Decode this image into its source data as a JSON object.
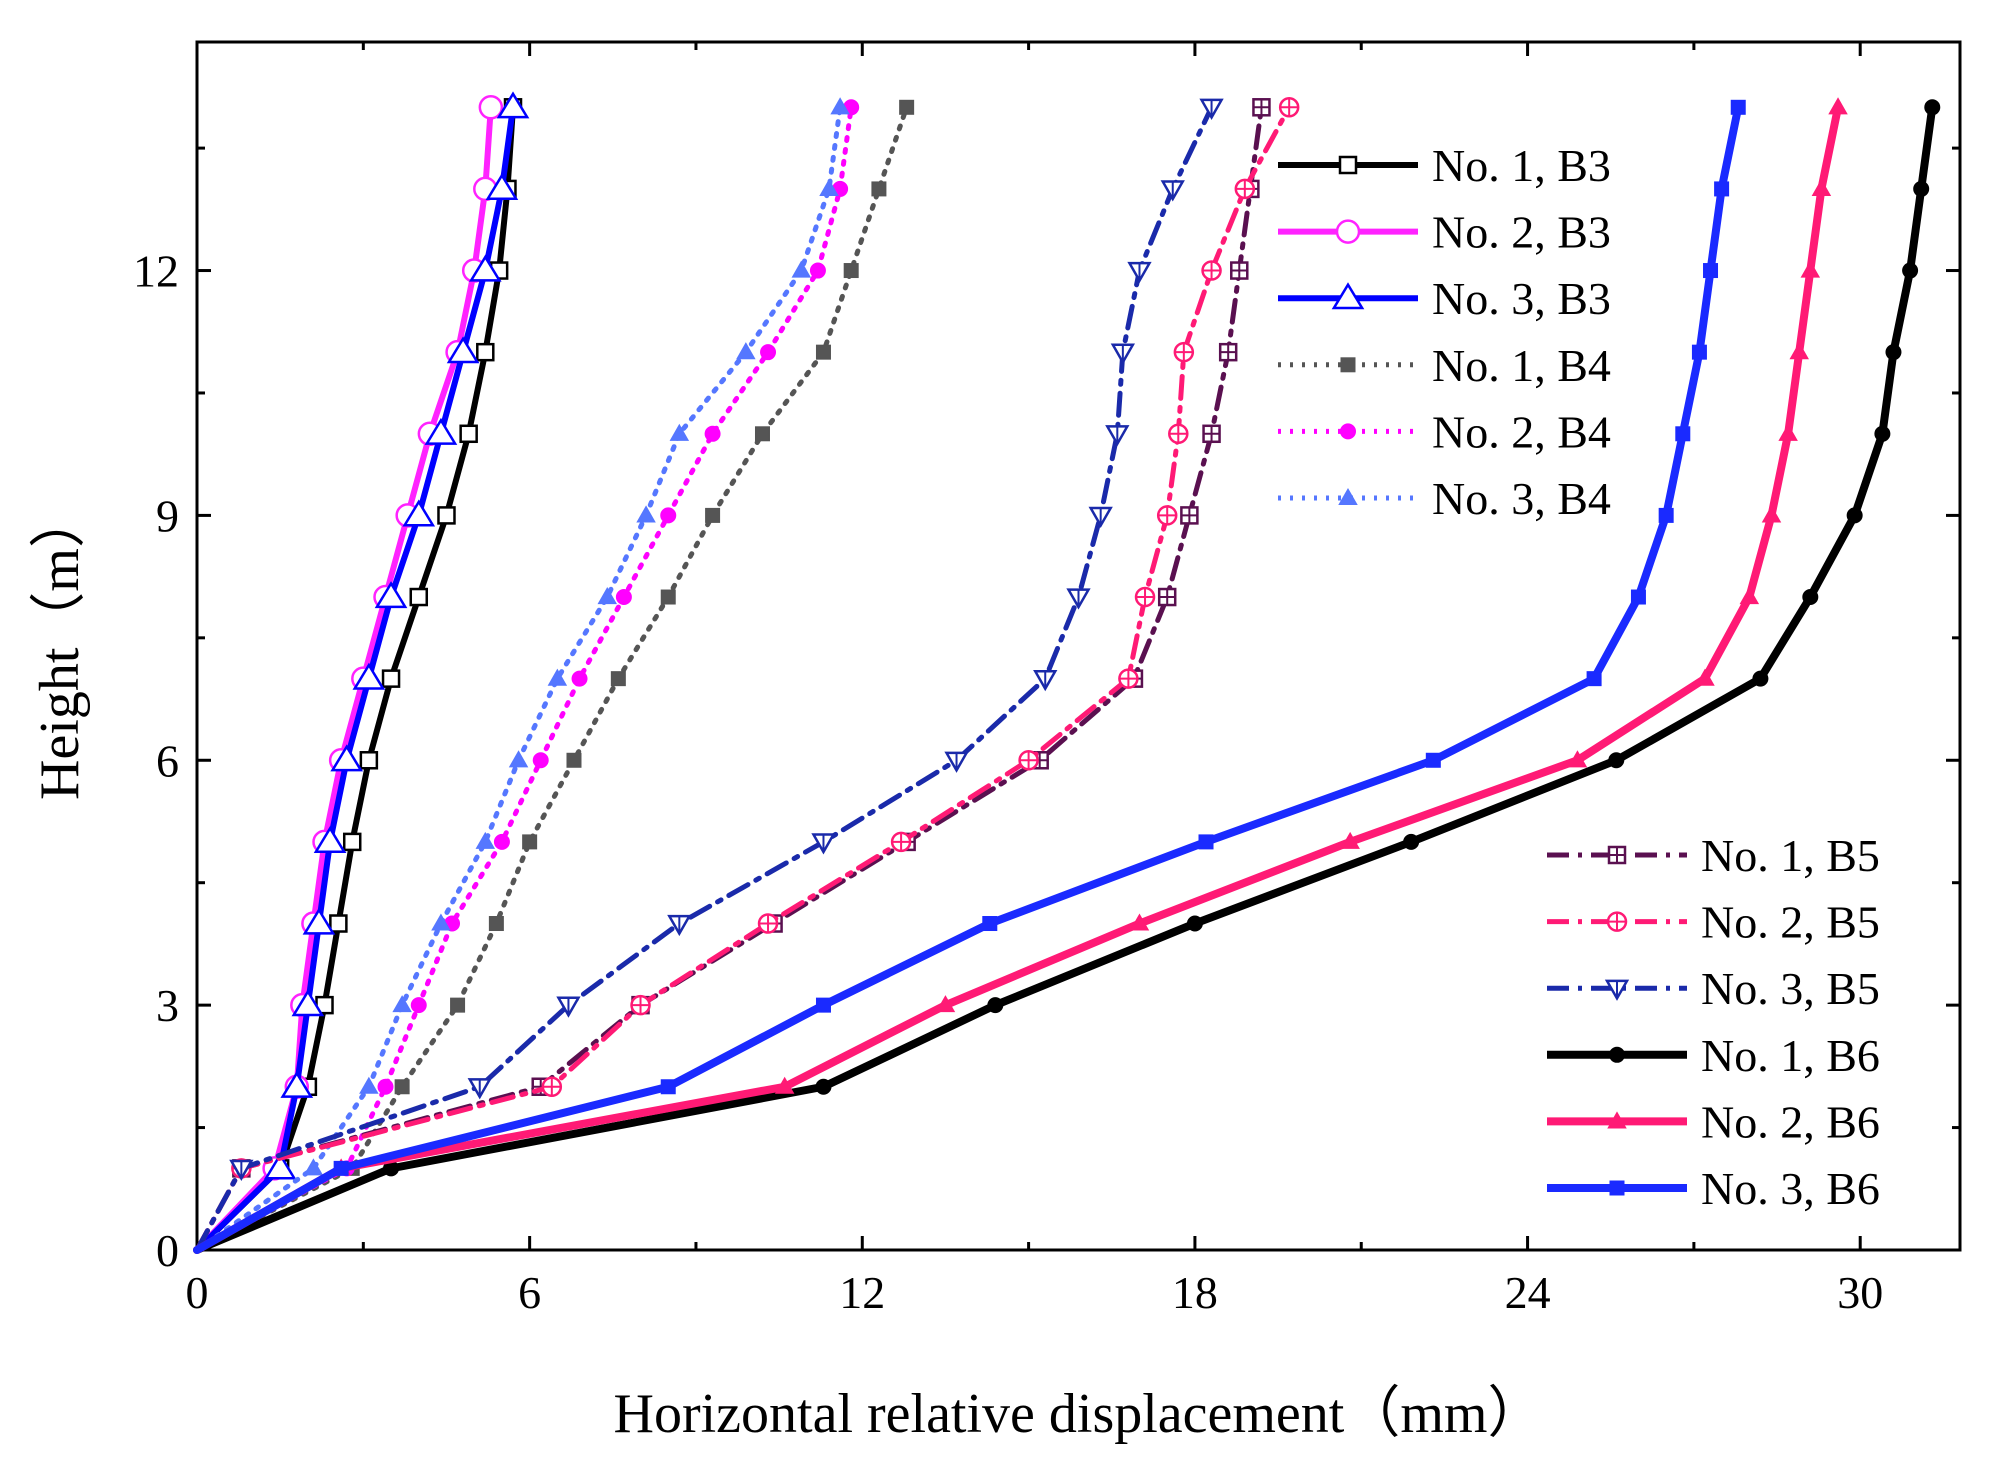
{
  "chart_data": {
    "type": "line",
    "title": "",
    "xlabel": "Horizontal relative displacement（mm）",
    "ylabel": "Height（m）",
    "xlim": [
      0,
      31.8
    ],
    "ylim": [
      0,
      14.8
    ],
    "xticks": [
      0,
      6,
      12,
      18,
      24,
      30
    ],
    "yticks": [
      0,
      3,
      6,
      9,
      12
    ],
    "grid": false,
    "legend_top": {
      "position": "top-right"
    },
    "legend_bottom": {
      "position": "bottom-right"
    },
    "series": [
      {
        "name": "No. 1, B3",
        "color": "#000000",
        "dash": "solid",
        "width": 6,
        "marker": "square-open",
        "x": [
          0,
          1.5,
          2.0,
          2.3,
          2.55,
          2.8,
          3.1,
          3.5,
          4.0,
          4.5,
          4.9,
          5.2,
          5.45,
          5.6,
          5.7
        ],
        "y": [
          0,
          1,
          2,
          3,
          4,
          5,
          6,
          7,
          8,
          9,
          10,
          11,
          12,
          13,
          14
        ]
      },
      {
        "name": "No. 2, B3",
        "color": "#FF22FF",
        "dash": "solid",
        "width": 6,
        "marker": "circle-open",
        "x": [
          0,
          1.4,
          1.8,
          1.9,
          2.1,
          2.3,
          2.6,
          3.0,
          3.4,
          3.8,
          4.2,
          4.7,
          5.0,
          5.2,
          5.3
        ],
        "y": [
          0,
          1,
          2,
          3,
          4,
          5,
          6,
          7,
          8,
          9,
          10,
          11,
          12,
          13,
          14
        ]
      },
      {
        "name": "No. 3, B3",
        "color": "#0000FF",
        "dash": "solid",
        "width": 6,
        "marker": "triangle-open",
        "x": [
          0,
          1.5,
          1.8,
          2.0,
          2.2,
          2.4,
          2.7,
          3.1,
          3.5,
          4.0,
          4.4,
          4.8,
          5.2,
          5.5,
          5.7
        ],
        "y": [
          0,
          1,
          2,
          3,
          4,
          5,
          6,
          7,
          8,
          9,
          10,
          11,
          12,
          13,
          14
        ]
      },
      {
        "name": "No. 1, B4",
        "color": "#555555",
        "dash": "dot",
        "width": 5,
        "marker": "square",
        "x": [
          0,
          2.8,
          3.7,
          4.7,
          5.4,
          6.0,
          6.8,
          7.6,
          8.5,
          9.3,
          10.2,
          11.3,
          11.8,
          12.3,
          12.8
        ],
        "y": [
          0,
          1,
          2,
          3,
          4,
          5,
          6,
          7,
          8,
          9,
          10,
          11,
          12,
          13,
          14
        ]
      },
      {
        "name": "No. 2, B4",
        "color": "#FF00FF",
        "dash": "dot",
        "width": 5,
        "marker": "circle",
        "x": [
          0,
          2.7,
          3.4,
          4.0,
          4.6,
          5.5,
          6.2,
          6.9,
          7.7,
          8.5,
          9.3,
          10.3,
          11.2,
          11.6,
          11.8
        ],
        "y": [
          0,
          1,
          2,
          3,
          4,
          5,
          6,
          7,
          8,
          9,
          10,
          11,
          12,
          13,
          14
        ]
      },
      {
        "name": "No. 3, B4",
        "color": "#5577FF",
        "dash": "dot",
        "width": 5,
        "marker": "triangle",
        "x": [
          0,
          2.1,
          3.1,
          3.7,
          4.4,
          5.2,
          5.8,
          6.5,
          7.4,
          8.1,
          8.7,
          9.9,
          10.9,
          11.4,
          11.6
        ],
        "y": [
          0,
          1,
          2,
          3,
          4,
          5,
          6,
          7,
          8,
          9,
          10,
          11,
          12,
          13,
          14
        ]
      },
      {
        "name": "No. 1, B5",
        "color": "#5A1050",
        "dash": "dashdot",
        "width": 5,
        "marker": "square-half",
        "x": [
          0,
          0.8,
          6.2,
          8.0,
          10.4,
          12.8,
          15.2,
          16.9,
          17.5,
          17.9,
          18.3,
          18.6,
          18.8,
          19.0,
          19.2
        ],
        "y": [
          0,
          1,
          2,
          3,
          4,
          5,
          6,
          7,
          8,
          9,
          10,
          11,
          12,
          13,
          14
        ]
      },
      {
        "name": "No. 2, B5",
        "color": "#FF1A75",
        "dash": "dashdot",
        "width": 5,
        "marker": "circle-half",
        "x": [
          0,
          0.8,
          6.4,
          8.0,
          10.3,
          12.7,
          15.0,
          16.8,
          17.1,
          17.5,
          17.7,
          17.8,
          18.3,
          18.9,
          19.7
        ],
        "y": [
          0,
          1,
          2,
          3,
          4,
          5,
          6,
          7,
          8,
          9,
          10,
          11,
          12,
          13,
          14
        ]
      },
      {
        "name": "No. 3, B5",
        "color": "#1A2AAA",
        "dash": "dashdot",
        "width": 5,
        "marker": "triangle-down",
        "x": [
          0,
          0.8,
          5.1,
          6.7,
          8.7,
          11.3,
          13.7,
          15.3,
          15.9,
          16.3,
          16.6,
          16.7,
          17.0,
          17.6,
          18.3
        ],
        "y": [
          0,
          1,
          2,
          3,
          4,
          5,
          6,
          7,
          8,
          9,
          10,
          11,
          12,
          13,
          14
        ]
      },
      {
        "name": "No. 1, B6",
        "color": "#000000",
        "dash": "solid",
        "width": 8,
        "marker": "circle",
        "x": [
          0,
          3.5,
          11.3,
          14.4,
          18.0,
          21.9,
          25.6,
          28.2,
          29.1,
          29.9,
          30.4,
          30.6,
          30.9,
          31.1,
          31.3
        ],
        "y": [
          0,
          1,
          2,
          3,
          4,
          5,
          6,
          7,
          8,
          9,
          10,
          11,
          12,
          13,
          14
        ]
      },
      {
        "name": "No. 2, B6",
        "color": "#FF1A75",
        "dash": "solid",
        "width": 8,
        "marker": "triangle",
        "x": [
          0,
          2.6,
          10.6,
          13.5,
          17.0,
          20.8,
          24.9,
          27.2,
          28.0,
          28.4,
          28.7,
          28.9,
          29.1,
          29.3,
          29.6
        ],
        "y": [
          0,
          1,
          2,
          3,
          4,
          5,
          6,
          7,
          8,
          9,
          10,
          11,
          12,
          13,
          14
        ]
      },
      {
        "name": "No. 3, B6",
        "color": "#1A2AFF",
        "dash": "solid",
        "width": 8,
        "marker": "square",
        "x": [
          0,
          2.6,
          8.5,
          11.3,
          14.3,
          18.2,
          22.3,
          25.2,
          26.0,
          26.5,
          26.8,
          27.1,
          27.3,
          27.5,
          27.8
        ],
        "y": [
          0,
          1,
          2,
          3,
          4,
          5,
          6,
          7,
          8,
          9,
          10,
          11,
          12,
          13,
          14
        ]
      }
    ]
  }
}
